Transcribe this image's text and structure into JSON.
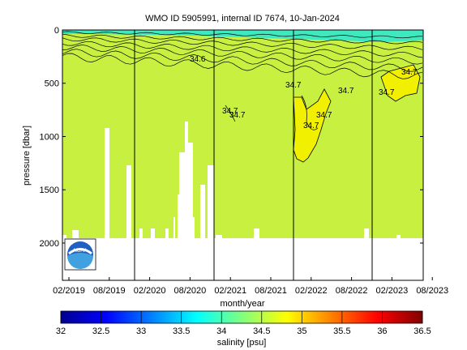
{
  "chart_data": {
    "type": "heatmap",
    "title": "WMO ID 5905991, internal ID 7674, 10-Jan-2024",
    "xlabel": "month/year",
    "ylabel": "pressure [dbar]",
    "colorbar_label": "salinity [psu]",
    "x_ticks": [
      "02/2019",
      "08/2019",
      "02/2020",
      "08/2020",
      "02/2021",
      "08/2021",
      "02/2022",
      "08/2022",
      "02/2023",
      "08/2023"
    ],
    "y_ticks": [
      0,
      500,
      1000,
      1500,
      2000
    ],
    "ylim": [
      2350,
      0
    ],
    "colorbar_ticks": [
      "32",
      "32.5",
      "33",
      "33.5",
      "34",
      "34.5",
      "35",
      "35.5",
      "36",
      "36.5"
    ],
    "colorbar_range": [
      32,
      36.5
    ],
    "colormap": "jet",
    "colors": {
      "background_salinity": "#c8f040",
      "surface_salinity": "#40e8c0",
      "max_salinity": "#f0f000"
    },
    "profile_max_depth": 2000,
    "contour_labels": [
      "34.6",
      "34.7",
      "34.7",
      "34.7",
      "34.7",
      "34.7",
      "34.7",
      "34.7"
    ],
    "year_dividers": [
      "01/2020",
      "01/2021",
      "01/2022",
      "01/2023"
    ],
    "logo": "NOAA"
  }
}
